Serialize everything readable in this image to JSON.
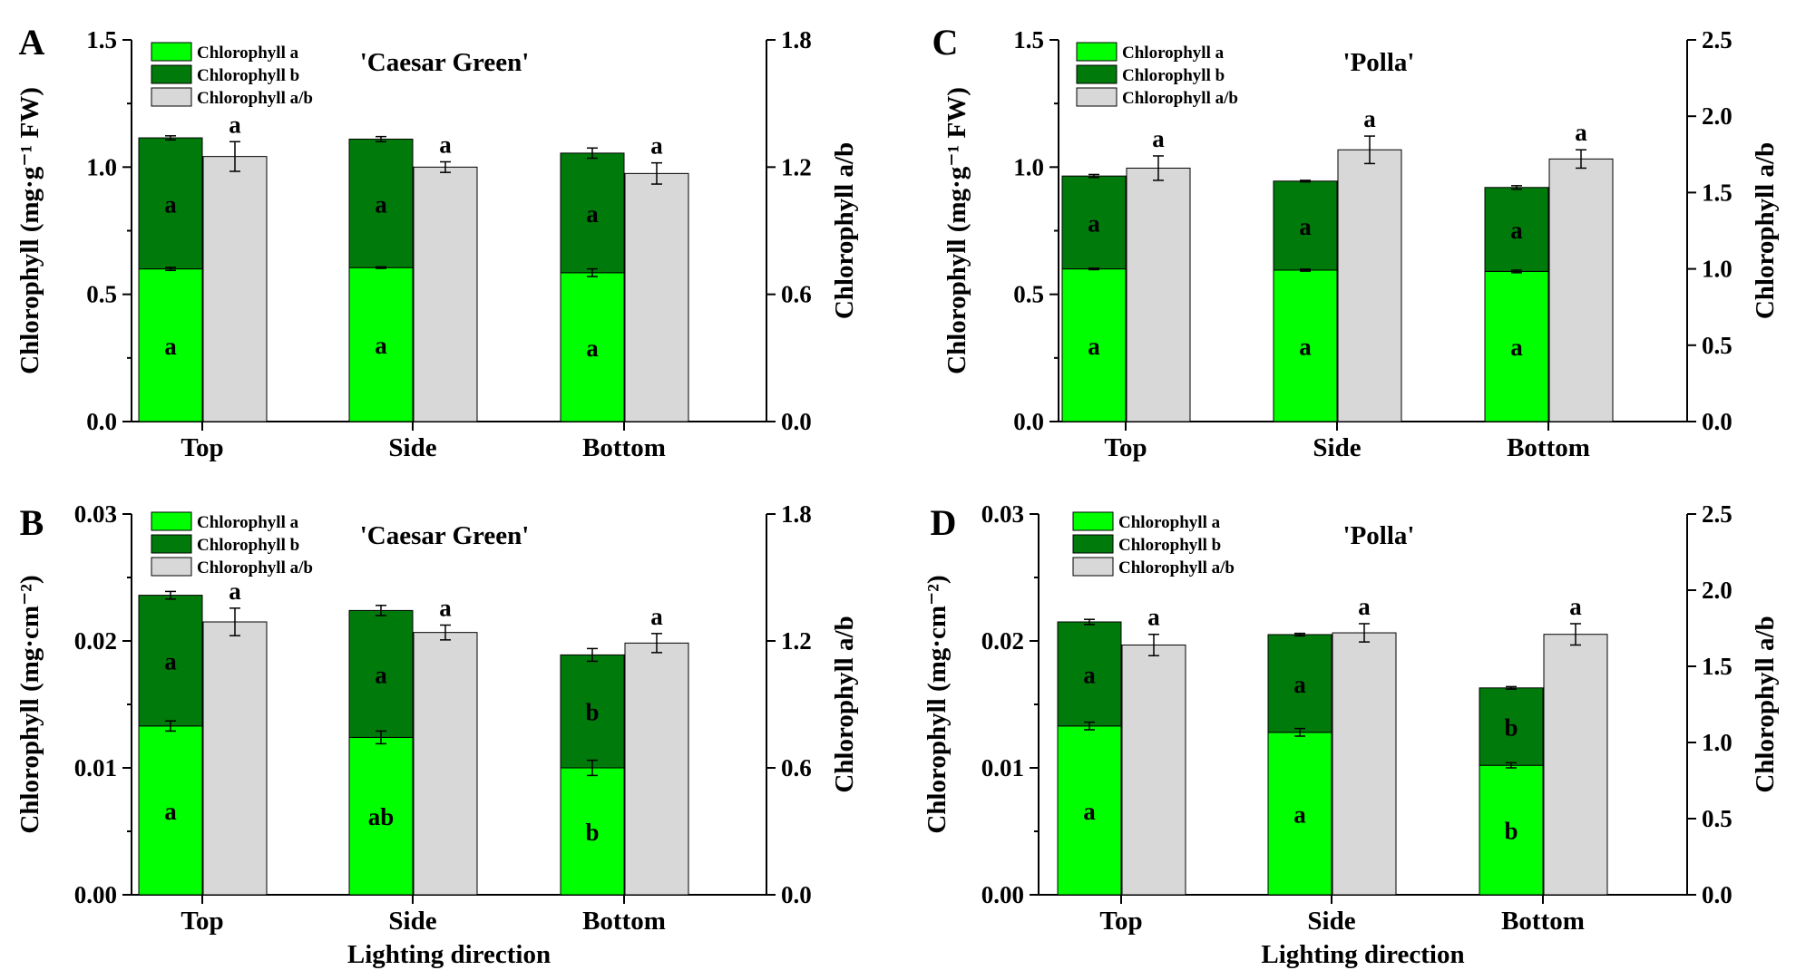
{
  "colors": {
    "chl_a": "#00ff00",
    "chl_b": "#007a0a",
    "ratio": "#d8d8d8",
    "axis": "#000000"
  },
  "chart_data": [
    {
      "panel": "A",
      "type": "bar",
      "title": "'Caesar Green'",
      "xlabel": "",
      "ylabel": "Chlorophyll (mg·g⁻¹ FW)",
      "ylabel_right": "Chlorophyll a/b",
      "categories": [
        "Top",
        "Side",
        "Bottom"
      ],
      "ylim": [
        0,
        1.5
      ],
      "yticks": [
        "0.0",
        "0.5",
        "1.0",
        "1.5"
      ],
      "ylim_right": [
        0,
        1.8
      ],
      "yticks_right": [
        "0.0",
        "0.6",
        "1.2",
        "1.8"
      ],
      "legend": [
        "Chlorophyll a",
        "Chlorophyll b",
        "Chlorophyll a/b"
      ],
      "series": [
        {
          "name": "Chlorophyll a",
          "values": [
            0.6,
            0.605,
            0.585
          ],
          "errors": [
            0.006,
            0.003,
            0.015
          ],
          "letters": [
            "a",
            "a",
            "a"
          ]
        },
        {
          "name": "Chlorophyll b",
          "values": [
            0.515,
            0.505,
            0.47
          ],
          "errors": [
            0.008,
            0.01,
            0.02
          ],
          "letters": [
            "a",
            "a",
            "a"
          ]
        },
        {
          "name": "Chlorophyll a/b",
          "axis": "right",
          "values": [
            1.25,
            1.2,
            1.17
          ],
          "errors": [
            0.07,
            0.025,
            0.05
          ],
          "letters": [
            "a",
            "a",
            "a"
          ]
        }
      ]
    },
    {
      "panel": "B",
      "type": "bar",
      "title": "'Caesar Green'",
      "xlabel": "Lighting direction",
      "ylabel": "Chlorophyll (mg·cm⁻²)",
      "ylabel_right": "Chlorophyll a/b",
      "categories": [
        "Top",
        "Side",
        "Bottom"
      ],
      "ylim": [
        0,
        0.03
      ],
      "yticks": [
        "0.00",
        "0.01",
        "0.02",
        "0.03"
      ],
      "ylim_right": [
        0,
        1.8
      ],
      "yticks_right": [
        "0.0",
        "0.6",
        "1.2",
        "1.8"
      ],
      "legend": [
        "Chlorophyll a",
        "Chlorophyll b",
        "Chlorophyll a/b"
      ],
      "series": [
        {
          "name": "Chlorophyll a",
          "values": [
            0.0133,
            0.0124,
            0.01
          ],
          "errors": [
            0.0004,
            0.0005,
            0.0006
          ],
          "letters": [
            "a",
            "ab",
            "b"
          ]
        },
        {
          "name": "Chlorophyll b",
          "values": [
            0.0103,
            0.01,
            0.0089
          ],
          "errors": [
            0.0003,
            0.0004,
            0.0005
          ],
          "letters": [
            "a",
            "a",
            "b"
          ]
        },
        {
          "name": "Chlorophyll a/b",
          "axis": "right",
          "values": [
            1.29,
            1.24,
            1.19
          ],
          "errors": [
            0.065,
            0.035,
            0.045
          ],
          "letters": [
            "a",
            "a",
            "a"
          ]
        }
      ]
    },
    {
      "panel": "C",
      "type": "bar",
      "title": "'Polla'",
      "xlabel": "",
      "ylabel": "Chlorophyll (mg·g⁻¹ FW)",
      "ylabel_right": "Chlorophyll a/b",
      "categories": [
        "Top",
        "Side",
        "Bottom"
      ],
      "ylim": [
        0,
        1.5
      ],
      "yticks": [
        "0.0",
        "0.5",
        "1.0",
        "1.5"
      ],
      "ylim_right": [
        0,
        2.5
      ],
      "yticks_right": [
        "0.0",
        "0.5",
        "1.0",
        "1.5",
        "2.0",
        "2.5"
      ],
      "legend": [
        "Chlorophyll a",
        "Chlorophyll b",
        "Chlorophyll a/b"
      ],
      "series": [
        {
          "name": "Chlorophyll a",
          "values": [
            0.6,
            0.595,
            0.59
          ],
          "errors": [
            0.003,
            0.004,
            0.005
          ],
          "letters": [
            "a",
            "a",
            "a"
          ]
        },
        {
          "name": "Chlorophyll b",
          "values": [
            0.365,
            0.35,
            0.33
          ],
          "errors": [
            0.006,
            0.003,
            0.007
          ],
          "letters": [
            "a",
            "a",
            "a"
          ]
        },
        {
          "name": "Chlorophyll a/b",
          "axis": "right",
          "values": [
            1.66,
            1.78,
            1.72
          ],
          "errors": [
            0.08,
            0.09,
            0.06
          ],
          "letters": [
            "a",
            "a",
            "a"
          ]
        }
      ]
    },
    {
      "panel": "D",
      "type": "bar",
      "title": "'Polla'",
      "xlabel": "Lighting direction",
      "ylabel": "Chlorophyll (mg·cm⁻²)",
      "ylabel_right": "Chlorophyll a/b",
      "categories": [
        "Top",
        "Side",
        "Bottom"
      ],
      "ylim": [
        0,
        0.03
      ],
      "yticks": [
        "0.00",
        "0.01",
        "0.02",
        "0.03"
      ],
      "ylim_right": [
        0,
        2.5
      ],
      "yticks_right": [
        "0.0",
        "0.5",
        "1.0",
        "1.5",
        "2.0",
        "2.5"
      ],
      "legend": [
        "Chlorophyll a",
        "Chlorophyll b",
        "Chlorophyll a/b"
      ],
      "series": [
        {
          "name": "Chlorophyll a",
          "values": [
            0.0133,
            0.0128,
            0.0102
          ],
          "errors": [
            0.0003,
            0.0003,
            0.0002
          ],
          "letters": [
            "a",
            "a",
            "b"
          ]
        },
        {
          "name": "Chlorophyll b",
          "values": [
            0.0082,
            0.0077,
            0.0061
          ],
          "errors": [
            0.0002,
            0.0001,
            0.0001
          ],
          "letters": [
            "a",
            "a",
            "b"
          ]
        },
        {
          "name": "Chlorophyll a/b",
          "axis": "right",
          "values": [
            1.64,
            1.72,
            1.71
          ],
          "errors": [
            0.07,
            0.06,
            0.07
          ],
          "letters": [
            "a",
            "a",
            "a"
          ]
        }
      ]
    }
  ]
}
